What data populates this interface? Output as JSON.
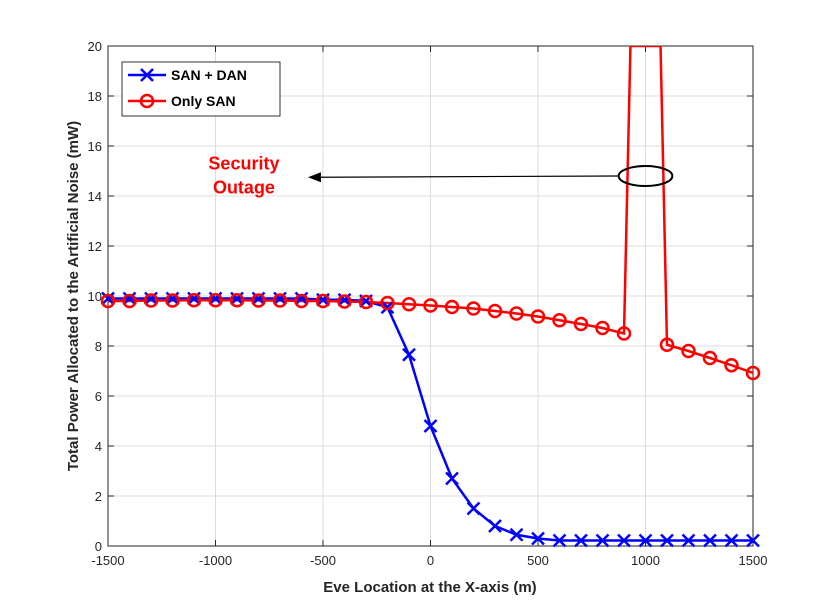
{
  "chart_data": {
    "type": "line",
    "title": "",
    "xlabel": "Eve Location at the X-axis (m)",
    "ylabel": "Total Power Allocated to the Artificial Noise (mW)",
    "xlim": [
      -1500,
      1500
    ],
    "ylim": [
      0,
      20
    ],
    "xticks": [
      -1500,
      -1000,
      -500,
      0,
      500,
      1000,
      1500
    ],
    "xtick_labels": [
      "-1500",
      "-1000",
      "-500",
      "0",
      "500",
      "1000",
      "1500"
    ],
    "yticks": [
      0,
      2,
      4,
      6,
      8,
      10,
      12,
      14,
      16,
      18,
      20
    ],
    "ytick_labels": [
      "0",
      "2",
      "4",
      "6",
      "8",
      "10",
      "12",
      "14",
      "16",
      "18",
      "20"
    ],
    "grid": true,
    "legend_position": "top-left",
    "series": [
      {
        "name": "SAN + DAN",
        "color": "#0000ff",
        "marker": "x",
        "x": [
          -1500,
          -1400,
          -1300,
          -1200,
          -1100,
          -1000,
          -900,
          -800,
          -700,
          -600,
          -500,
          -400,
          -300,
          -200,
          -100,
          0,
          100,
          200,
          300,
          400,
          500,
          600,
          700,
          800,
          900,
          1000,
          1100,
          1200,
          1300,
          1400,
          1500
        ],
        "y": [
          9.9,
          9.9,
          9.9,
          9.9,
          9.9,
          9.9,
          9.9,
          9.9,
          9.9,
          9.9,
          9.85,
          9.85,
          9.8,
          9.55,
          7.65,
          4.8,
          2.7,
          1.5,
          0.8,
          0.45,
          0.3,
          0.22,
          0.22,
          0.22,
          0.22,
          0.22,
          0.22,
          0.22,
          0.22,
          0.22,
          0.22
        ]
      },
      {
        "name": "Only SAN",
        "color": "#ff0000",
        "marker": "o",
        "x": [
          -1500,
          -1400,
          -1300,
          -1200,
          -1100,
          -1000,
          -900,
          -800,
          -700,
          -600,
          -500,
          -400,
          -300,
          -200,
          -100,
          0,
          100,
          200,
          300,
          400,
          500,
          600,
          700,
          800,
          900,
          1100,
          1200,
          1300,
          1400,
          1500
        ],
        "y": [
          9.8,
          9.8,
          9.82,
          9.82,
          9.83,
          9.83,
          9.83,
          9.82,
          9.82,
          9.8,
          9.8,
          9.78,
          9.76,
          9.72,
          9.67,
          9.62,
          9.56,
          9.5,
          9.4,
          9.3,
          9.18,
          9.03,
          8.88,
          8.72,
          8.5,
          8.05,
          7.8,
          7.52,
          7.23,
          6.92
        ],
        "outage_x": [
          900,
          930,
          1070,
          1100
        ],
        "outage_y": [
          8.5,
          20,
          20,
          8.05
        ]
      }
    ],
    "annotation": {
      "lines": [
        "Security",
        "Outage"
      ],
      "color": "#ff0000",
      "ellipse_center": [
        1000,
        14.8
      ],
      "ellipse_radii": [
        125,
        0.4
      ],
      "arrow_tip": [
        -570,
        14.75
      ]
    }
  }
}
